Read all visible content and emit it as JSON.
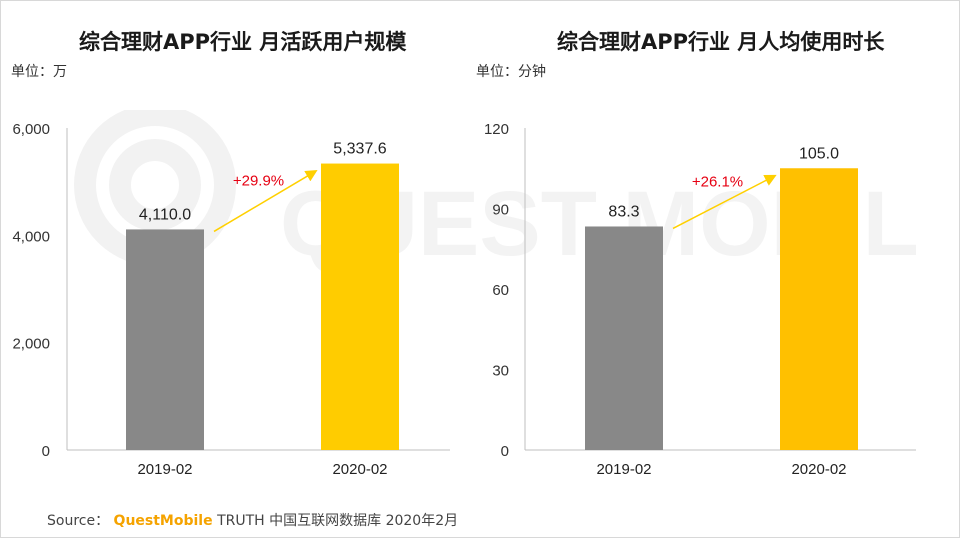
{
  "chart_data": [
    {
      "type": "bar",
      "title": "综合理财APP行业 月活跃用户规模",
      "unit_label": "单位：万",
      "categories": [
        "2019-02",
        "2020-02"
      ],
      "values": [
        4110.0,
        5337.6
      ],
      "value_labels": [
        "4,110.0",
        "5,337.6"
      ],
      "ylim": [
        0,
        6000
      ],
      "yticks": [
        0,
        2000,
        4000,
        6000
      ],
      "ytick_labels": [
        "0",
        "2,000",
        "4,000",
        "6,000"
      ],
      "growth_label": "+29.9%",
      "bar_colors": [
        "#888888",
        "#ffcc00"
      ]
    },
    {
      "type": "bar",
      "title": "综合理财APP行业 月人均使用时长",
      "unit_label": "单位：分钟",
      "categories": [
        "2019-02",
        "2020-02"
      ],
      "values": [
        83.3,
        105.0
      ],
      "value_labels": [
        "83.3",
        "105.0"
      ],
      "ylim": [
        0,
        120
      ],
      "yticks": [
        0,
        30,
        60,
        90,
        120
      ],
      "ytick_labels": [
        "0",
        "30",
        "60",
        "90",
        "120"
      ],
      "growth_label": "+26.1%",
      "bar_colors": [
        "#888888",
        "#ffc000"
      ]
    }
  ],
  "colors": {
    "growth_text": "#e60012",
    "arrow": "#ffd000",
    "axis": "#bfbfbf",
    "brand": "#f5a300"
  },
  "watermark": {
    "text": "QUEST MOBILE"
  },
  "source": {
    "prefix": "Source：",
    "brand": "QuestMobile",
    "rest": "TRUTH 中国互联网数据库 2020年2月"
  }
}
